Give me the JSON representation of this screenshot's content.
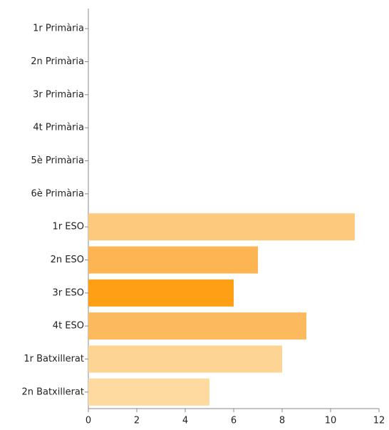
{
  "chart_data": {
    "type": "barh",
    "categories": [
      "1r Primària",
      "2n Primària",
      "3r Primària",
      "4t Primària",
      "5è Primària",
      "6è Primària",
      "1r ESO",
      "2n ESO",
      "3r ESO",
      "4t ESO",
      "1r Batxillerat",
      "2n Batxillerat"
    ],
    "values": [
      0,
      0,
      0,
      0,
      0,
      0,
      11,
      7,
      6,
      9,
      8,
      5
    ],
    "colors": [
      "#fdc97c",
      "#fdc97c",
      "#fdc97c",
      "#fdc97c",
      "#fdc97c",
      "#fdc97c",
      "#fdc97c",
      "#fdb553",
      "#fe9f14",
      "#fdb95e",
      "#fed494",
      "#fed9a0"
    ],
    "xlim": [
      0,
      12
    ],
    "xticks": [
      0,
      2,
      4,
      6,
      8,
      10,
      12
    ],
    "grid": false
  }
}
